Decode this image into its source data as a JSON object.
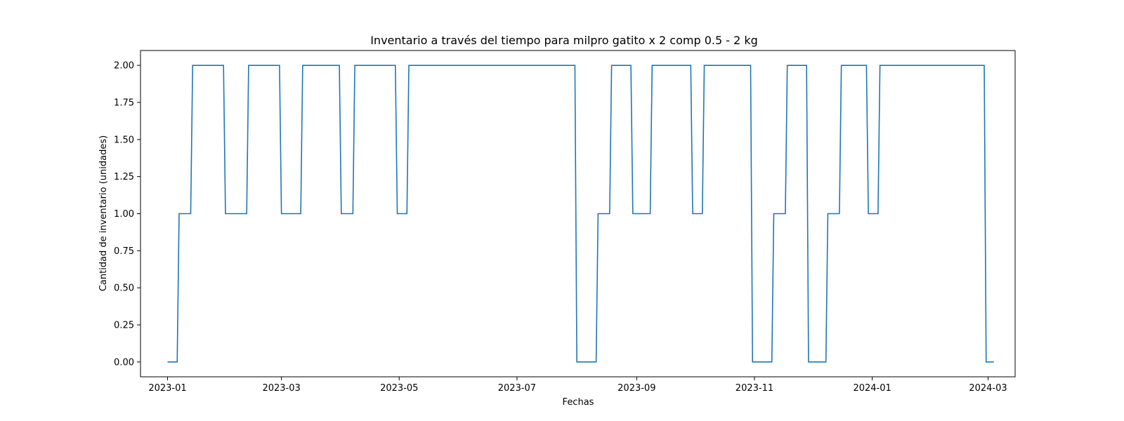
{
  "chart_data": {
    "type": "line",
    "title": "Inventario a través del tiempo para milpro gatito x 2 comp 0.5 - 2 kg",
    "xlabel": "Fechas",
    "ylabel": "Cantidad de inventario (unidades)",
    "xlim": [
      "2022-12-18",
      "2024-03-15"
    ],
    "ylim": [
      -0.1,
      2.1
    ],
    "grid": false,
    "line_color": "#1f77b4",
    "x_ticks": [
      "2023-01",
      "2023-03",
      "2023-05",
      "2023-07",
      "2023-09",
      "2023-11",
      "2024-01",
      "2024-03"
    ],
    "y_ticks": [
      "0.00",
      "0.25",
      "0.50",
      "0.75",
      "1.00",
      "1.25",
      "1.50",
      "1.75",
      "2.00"
    ],
    "series": [
      {
        "x": [
          "2023-01-01",
          "2023-01-06",
          "2023-01-07",
          "2023-01-13",
          "2023-01-14",
          "2023-01-30",
          "2023-01-31",
          "2023-02-11",
          "2023-02-12",
          "2023-02-28",
          "2023-03-01",
          "2023-03-11",
          "2023-03-12",
          "2023-03-31",
          "2023-04-01",
          "2023-04-07",
          "2023-04-08",
          "2023-04-29",
          "2023-04-30",
          "2023-05-05",
          "2023-05-06",
          "2023-07-31",
          "2023-08-01",
          "2023-08-11",
          "2023-08-12",
          "2023-08-18",
          "2023-08-19",
          "2023-08-29",
          "2023-08-30",
          "2023-09-08",
          "2023-09-09",
          "2023-09-29",
          "2023-09-30",
          "2023-10-05",
          "2023-10-06",
          "2023-10-30",
          "2023-10-31",
          "2023-11-10",
          "2023-11-11",
          "2023-11-17",
          "2023-11-18",
          "2023-11-28",
          "2023-11-29",
          "2023-12-08",
          "2023-12-09",
          "2023-12-15",
          "2023-12-16",
          "2023-12-29",
          "2023-12-30",
          "2024-01-04",
          "2024-01-05",
          "2024-02-28",
          "2024-02-29",
          "2024-03-04"
        ],
        "y": [
          0,
          0,
          1,
          1,
          2,
          2,
          1,
          1,
          2,
          2,
          1,
          1,
          2,
          2,
          1,
          1,
          2,
          2,
          1,
          1,
          2,
          2,
          0,
          0,
          1,
          1,
          2,
          2,
          1,
          1,
          2,
          2,
          1,
          1,
          2,
          2,
          0,
          0,
          1,
          1,
          2,
          2,
          0,
          0,
          1,
          1,
          2,
          2,
          1,
          1,
          2,
          2,
          0,
          0
        ]
      }
    ]
  }
}
